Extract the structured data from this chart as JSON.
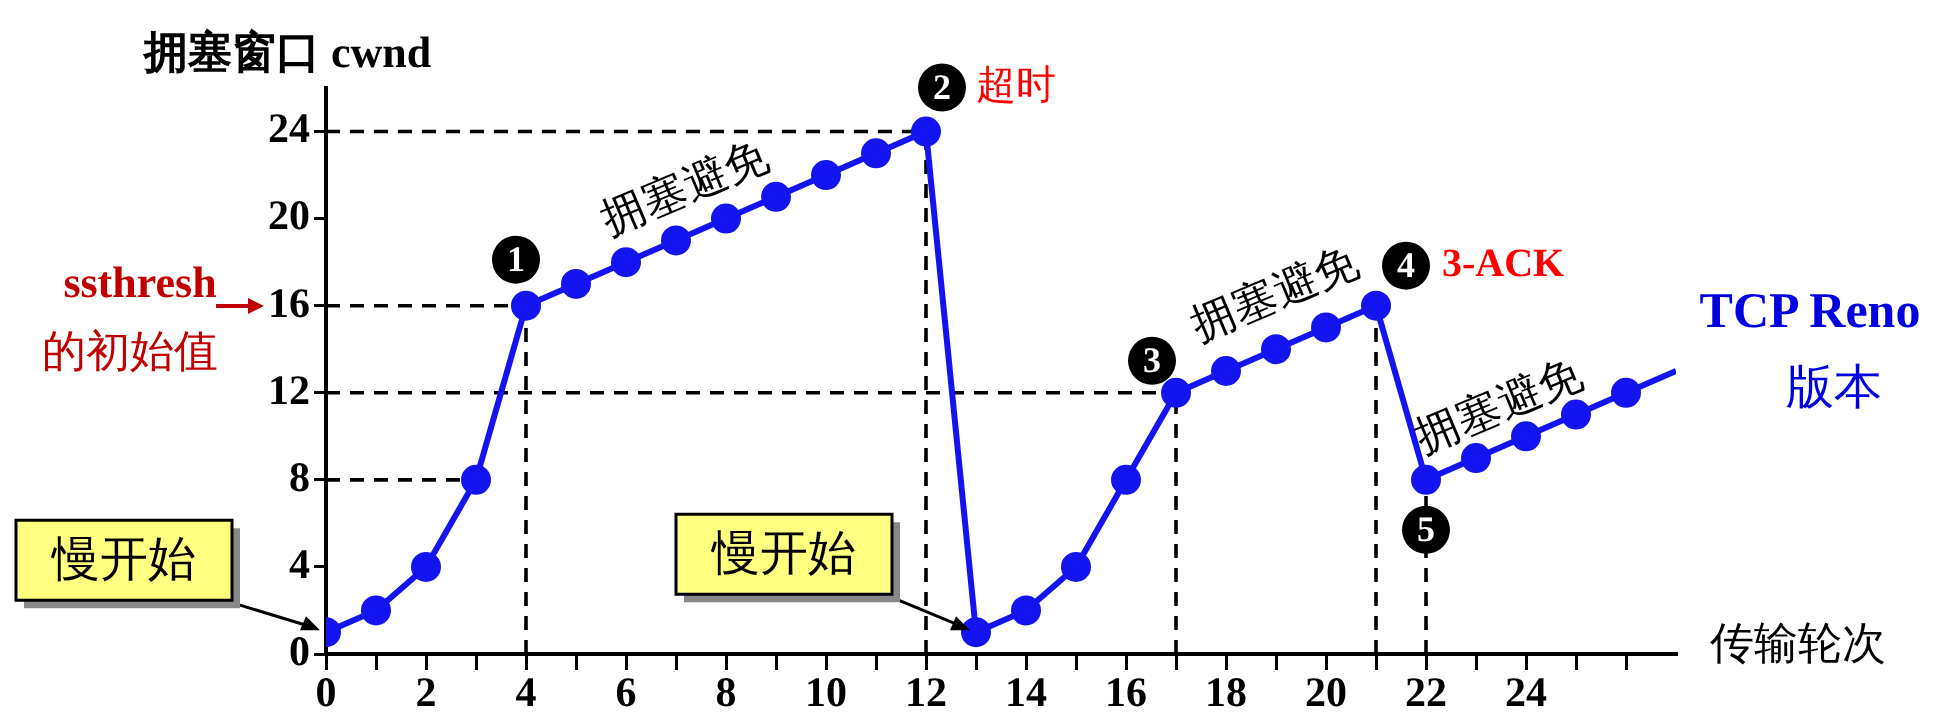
{
  "chart_data": {
    "type": "line",
    "xlabel": "传输轮次",
    "ylabel": "拥塞窗口 cwnd",
    "x": [
      0,
      1,
      2,
      3,
      4,
      5,
      6,
      7,
      8,
      9,
      10,
      11,
      12,
      13,
      14,
      15,
      16,
      17,
      18,
      19,
      20,
      21,
      22,
      23,
      24,
      25,
      26,
      27
    ],
    "series": [
      {
        "color": "#1414f0",
        "values": [
          1,
          2,
          4,
          8,
          16,
          17,
          18,
          19,
          20,
          21,
          22,
          23,
          24,
          1,
          2,
          4,
          8,
          12,
          13,
          14,
          15,
          16,
          8,
          9,
          10,
          11,
          12,
          13
        ]
      }
    ],
    "xlim": [
      0,
      27
    ],
    "xticks": [
      0,
      {
        "value": 1,
        "label": null
      },
      2,
      {
        "value": 3,
        "label": null
      },
      4,
      {
        "value": 5,
        "label": null
      },
      6,
      {
        "value": 7,
        "label": null
      },
      8,
      {
        "value": 9,
        "label": null
      },
      10,
      {
        "value": 11,
        "label": null
      },
      12,
      {
        "value": 13,
        "label": null
      },
      14,
      {
        "value": 15,
        "label": null
      },
      16,
      {
        "value": 17,
        "label": null
      },
      18,
      {
        "value": 19,
        "label": null
      },
      20,
      {
        "value": 21,
        "label": null
      },
      22,
      {
        "value": 23,
        "label": null
      },
      24,
      {
        "value": 25,
        "label": null
      },
      {
        "value": 26,
        "label": null
      }
    ],
    "ylim": [
      0,
      26
    ],
    "yticks": [
      0,
      4,
      8,
      12,
      16,
      20,
      24
    ],
    "ref_lines": [
      {
        "axis": "y",
        "value": 24,
        "line_style": "dashed",
        "color": "#000000"
      },
      {
        "axis": "y",
        "value": 16,
        "line_style": "dashed",
        "color": "#000000"
      },
      {
        "axis": "y",
        "value": 12,
        "line_style": "dashed",
        "color": "#000000"
      },
      {
        "axis": "y",
        "value": 8,
        "line_style": "dashed",
        "color": "#000000"
      },
      {
        "axis": "x",
        "value": 4,
        "line_style": "dashed",
        "color": "#000000"
      },
      {
        "axis": "x",
        "value": 12,
        "line_style": "dashed",
        "color": "#000000"
      },
      {
        "axis": "x",
        "value": 17,
        "line_style": "dashed",
        "color": "#000000"
      },
      {
        "axis": "x",
        "value": 21,
        "line_style": "dashed",
        "color": "#000000"
      },
      {
        "axis": "x",
        "value": 22,
        "line_style": "dashed",
        "color": "#000000"
      }
    ],
    "annotations": [
      {
        "text": "1",
        "x": 4,
        "y": 16
      },
      {
        "text": "2",
        "x": 12,
        "y": 24
      },
      {
        "text": "3",
        "x": 17,
        "y": 12
      },
      {
        "text": "4",
        "x": 21,
        "y": 16
      },
      {
        "text": "5",
        "x": 22,
        "y": 8
      },
      {
        "text": "超时",
        "x": 12,
        "y": 24
      },
      {
        "text": "3-ACK",
        "x": 21,
        "y": 16
      },
      "拥塞避免",
      "拥塞避免",
      "拥塞避免",
      {
        "text": "慢开始",
        "x": 0,
        "y": 1
      },
      {
        "text": "慢开始",
        "x": 13,
        "y": 1
      },
      "ssthresh",
      "的初始值",
      "TCP Reno",
      "版本"
    ],
    "grid": false,
    "legend": false,
    "marker": "circle",
    "line_style": "solid"
  }
}
